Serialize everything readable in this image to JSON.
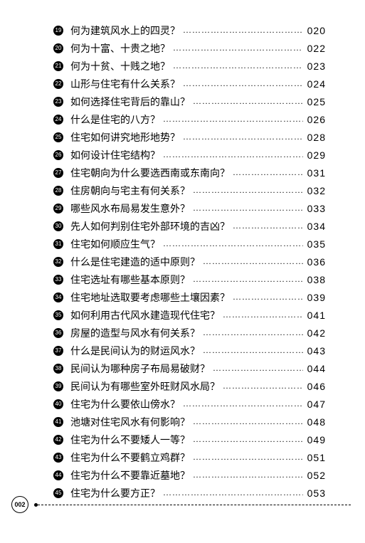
{
  "page_number": "002",
  "entries": [
    {
      "num": "19",
      "title": "何为建筑风水上的四灵？",
      "page": "020"
    },
    {
      "num": "20",
      "title": "何为十富、十贵之地？",
      "page": "022"
    },
    {
      "num": "21",
      "title": "何为十贫、十贱之地？",
      "page": "023"
    },
    {
      "num": "22",
      "title": "山形与住宅有什么关系？",
      "page": "024"
    },
    {
      "num": "23",
      "title": "如何选择住宅背后的靠山？",
      "page": "025"
    },
    {
      "num": "24",
      "title": "什么是住宅的八方？",
      "page": "026"
    },
    {
      "num": "25",
      "title": "住宅如何讲究地形地势？",
      "page": "028"
    },
    {
      "num": "26",
      "title": "如何设计住宅结构？",
      "page": "029"
    },
    {
      "num": "27",
      "title": "住宅朝向为什么要选西南或东南向？",
      "page": "031"
    },
    {
      "num": "28",
      "title": "住房朝向与宅主有何关系？",
      "page": "032"
    },
    {
      "num": "29",
      "title": "哪些风水布局易发生意外？",
      "page": "033"
    },
    {
      "num": "30",
      "title": "先人如何判别住宅外部环境的吉凶？",
      "page": "034"
    },
    {
      "num": "31",
      "title": "住宅如何顺应生气？",
      "page": "035"
    },
    {
      "num": "32",
      "title": "什么是住宅建造的适中原则？",
      "page": "036"
    },
    {
      "num": "33",
      "title": "住宅选址有哪些基本原则？",
      "page": "038"
    },
    {
      "num": "34",
      "title": "住宅地址选取要考虑哪些土壤因素？",
      "page": "039"
    },
    {
      "num": "35",
      "title": "如何利用古代风水建造现代住宅？",
      "page": "041"
    },
    {
      "num": "36",
      "title": "房屋的造型与风水有何关系？",
      "page": "042"
    },
    {
      "num": "37",
      "title": "什么是民间认为的财运风水？",
      "page": "043"
    },
    {
      "num": "38",
      "title": "民间认为哪种房子布局易破财？",
      "page": "044"
    },
    {
      "num": "39",
      "title": "民间认为有哪些室外旺财风水局？",
      "page": "046"
    },
    {
      "num": "40",
      "title": "住宅为什么要依山傍水？",
      "page": "047"
    },
    {
      "num": "41",
      "title": "池塘对住宅风水有何影响？",
      "page": "048"
    },
    {
      "num": "42",
      "title": "住宅为什么不要矮人一等？",
      "page": "049"
    },
    {
      "num": "43",
      "title": "住宅为什么不要鹤立鸡群？",
      "page": "051"
    },
    {
      "num": "44",
      "title": "住宅为什么不要靠近墓地？",
      "page": "052"
    },
    {
      "num": "45",
      "title": "住宅为什么要方正？",
      "page": "053"
    }
  ]
}
